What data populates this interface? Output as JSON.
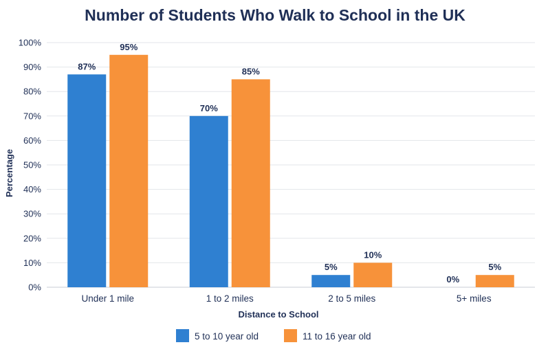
{
  "chart_data": {
    "type": "bar",
    "title": "Number of Students Who Walk to School in the UK",
    "xlabel": "Distance to School",
    "ylabel": "Percentage",
    "ylim": [
      0,
      100
    ],
    "y_ticks": [
      "0%",
      "10%",
      "20%",
      "30%",
      "40%",
      "50%",
      "60%",
      "70%",
      "80%",
      "90%",
      "100%"
    ],
    "categories": [
      "Under 1 mile",
      "1 to 2 miles",
      "2 to 5 miles",
      "5+ miles"
    ],
    "series": [
      {
        "name": "5 to 10 year old",
        "color": "#2f80d1",
        "values": [
          87,
          70,
          5,
          0
        ],
        "labels": [
          "87%",
          "70%",
          "5%",
          "0%"
        ]
      },
      {
        "name": "11 to 16 year old",
        "color": "#f7923a",
        "values": [
          95,
          85,
          10,
          5
        ],
        "labels": [
          "95%",
          "85%",
          "10%",
          "5%"
        ]
      }
    ],
    "grid": true,
    "legend_position": "bottom"
  }
}
